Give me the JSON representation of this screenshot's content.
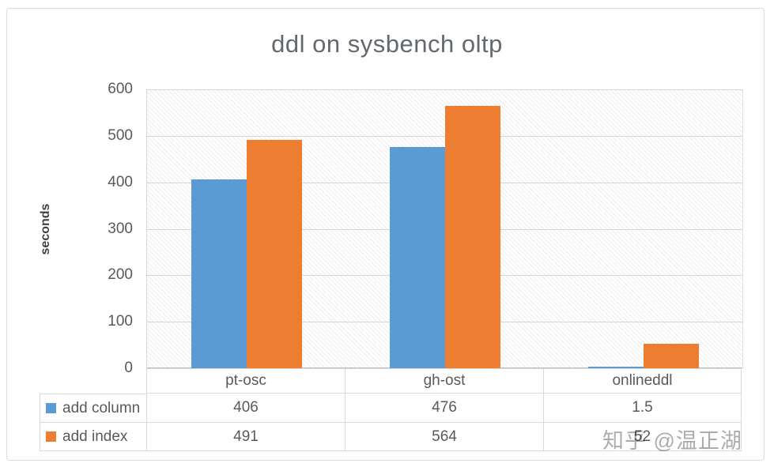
{
  "title": "ddl on sysbench oltp",
  "watermark": {
    "text": "知乎 @温正湖"
  },
  "chart_data": {
    "type": "bar",
    "title": "ddl on sysbench oltp",
    "xlabel": "",
    "ylabel": "seconds",
    "ylim": [
      0,
      600
    ],
    "yticks": [
      0,
      100,
      200,
      300,
      400,
      500,
      600
    ],
    "grid": true,
    "plot_background": "diagonal-hatch",
    "legend_position": "table-left-column",
    "categories": [
      "pt-osc",
      "gh-ost",
      "onlineddl"
    ],
    "series": [
      {
        "name": "add column",
        "color": "#5B9BD5",
        "values": [
          406,
          476,
          1.5
        ],
        "display": [
          "406",
          "476",
          "1.5"
        ]
      },
      {
        "name": "add index",
        "color": "#ED7D31",
        "values": [
          491,
          564,
          52
        ],
        "display": [
          "491",
          "564",
          "52"
        ]
      }
    ]
  },
  "colors": {
    "series_blue": "#5B9BD5",
    "series_orange": "#ED7D31",
    "title_text": "#63686F",
    "axis_text": "#595959",
    "gridline": "#D6D6D6",
    "table_border": "#D9D9D9",
    "watermark_text": "#A8A8A8"
  }
}
